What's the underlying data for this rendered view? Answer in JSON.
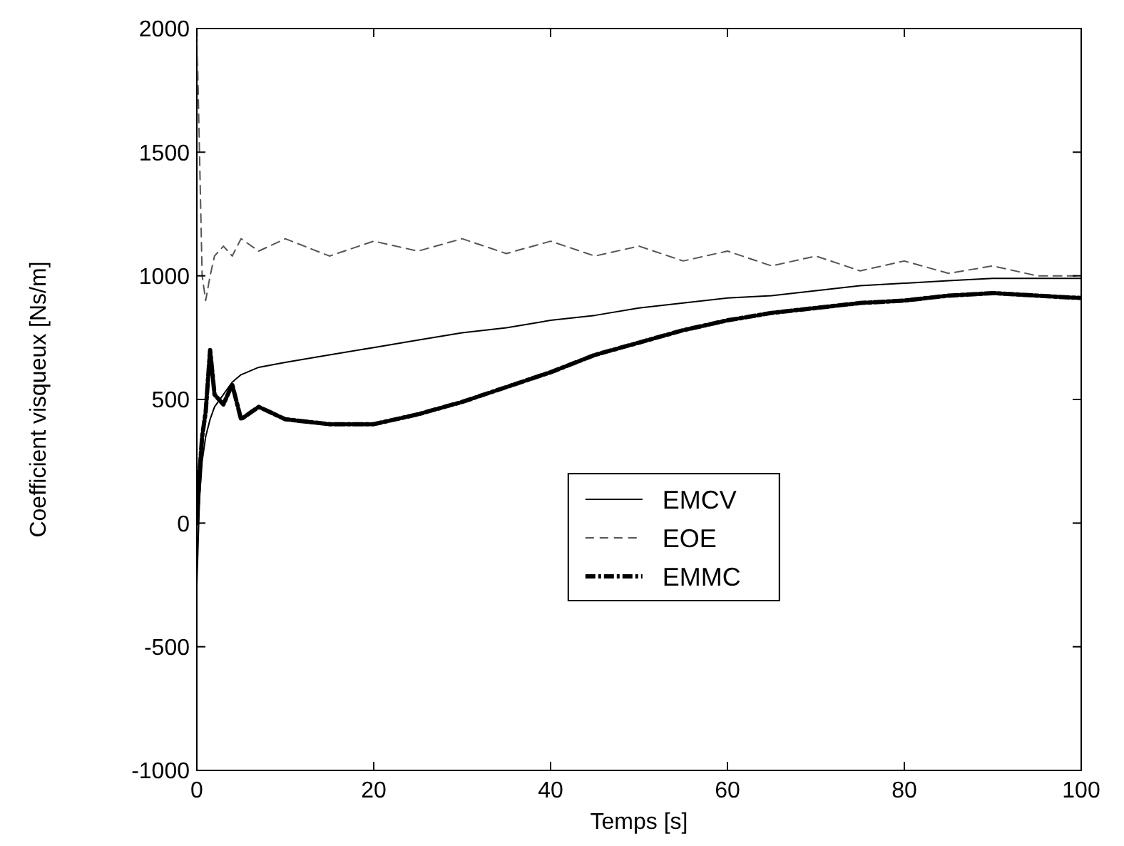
{
  "chart_data": {
    "type": "line",
    "xlabel": "Temps [s]",
    "ylabel": "Coefficient visqueux [Ns/m]",
    "xlim": [
      0,
      100
    ],
    "ylim": [
      -1000,
      2000
    ],
    "xticks": [
      0,
      20,
      40,
      60,
      80,
      100
    ],
    "yticks": [
      -1000,
      -500,
      0,
      500,
      1000,
      1500,
      2000
    ],
    "grid": false,
    "legend": "center",
    "x": [
      0,
      0.3,
      0.6,
      1,
      1.5,
      2,
      3,
      4,
      5,
      7,
      10,
      15,
      20,
      25,
      30,
      35,
      40,
      45,
      50,
      55,
      60,
      65,
      70,
      75,
      80,
      85,
      90,
      95,
      100
    ],
    "series": [
      {
        "name": "EMCV",
        "color": "#000000",
        "line_style": "solid",
        "values": [
          -250,
          100,
          250,
          350,
          420,
          470,
          520,
          570,
          600,
          630,
          650,
          680,
          710,
          740,
          770,
          790,
          820,
          840,
          870,
          890,
          910,
          920,
          940,
          960,
          970,
          980,
          990,
          990,
          990
        ]
      },
      {
        "name": "EOE",
        "color": "#555555",
        "line_style": "dashed",
        "values": [
          2000,
          1500,
          1000,
          900,
          1000,
          1080,
          1120,
          1080,
          1150,
          1100,
          1150,
          1080,
          1140,
          1100,
          1150,
          1090,
          1140,
          1080,
          1120,
          1060,
          1100,
          1040,
          1080,
          1020,
          1060,
          1010,
          1040,
          1000,
          1000
        ]
      },
      {
        "name": "EMMC",
        "color": "#000000",
        "line_style": "dotted",
        "values": [
          0,
          200,
          350,
          450,
          700,
          520,
          480,
          560,
          420,
          470,
          420,
          400,
          400,
          440,
          490,
          550,
          610,
          680,
          730,
          780,
          820,
          850,
          870,
          890,
          900,
          920,
          930,
          920,
          910
        ]
      }
    ]
  }
}
